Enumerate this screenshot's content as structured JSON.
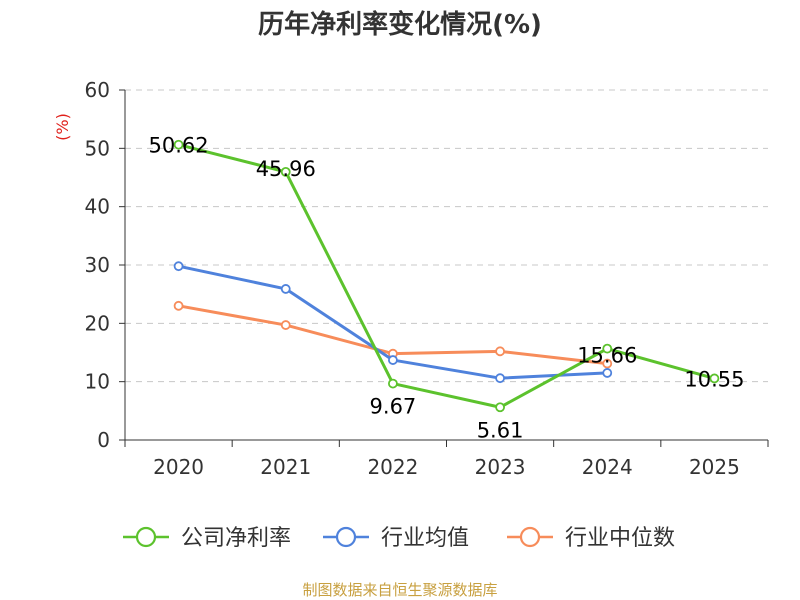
{
  "chart_data": {
    "type": "line",
    "title": "历年净利率变化情况(%)",
    "ylabel": "(%)",
    "xlabel": "",
    "categories": [
      "2020",
      "2021",
      "2022",
      "2023",
      "2024",
      "2025"
    ],
    "ylim": [
      0,
      60
    ],
    "yticks": [
      0,
      10,
      20,
      30,
      40,
      50,
      60
    ],
    "grid": true,
    "legend_position": "bottom",
    "series": [
      {
        "name": "公司净利率",
        "color": "#5cc22d",
        "values": [
          50.62,
          45.96,
          9.67,
          5.61,
          15.66,
          10.55
        ],
        "labels": [
          "50.62",
          "45.96",
          "9.67",
          "5.61",
          "15.66",
          "10.55"
        ]
      },
      {
        "name": "行业均值",
        "color": "#4f82dc",
        "values": [
          29.8,
          25.9,
          13.7,
          10.6,
          11.5,
          null
        ]
      },
      {
        "name": "行业中位数",
        "color": "#f78c5a",
        "values": [
          23.0,
          19.7,
          14.8,
          15.2,
          13.1,
          null
        ]
      }
    ]
  },
  "source": "制图数据来自恒生聚源数据库"
}
